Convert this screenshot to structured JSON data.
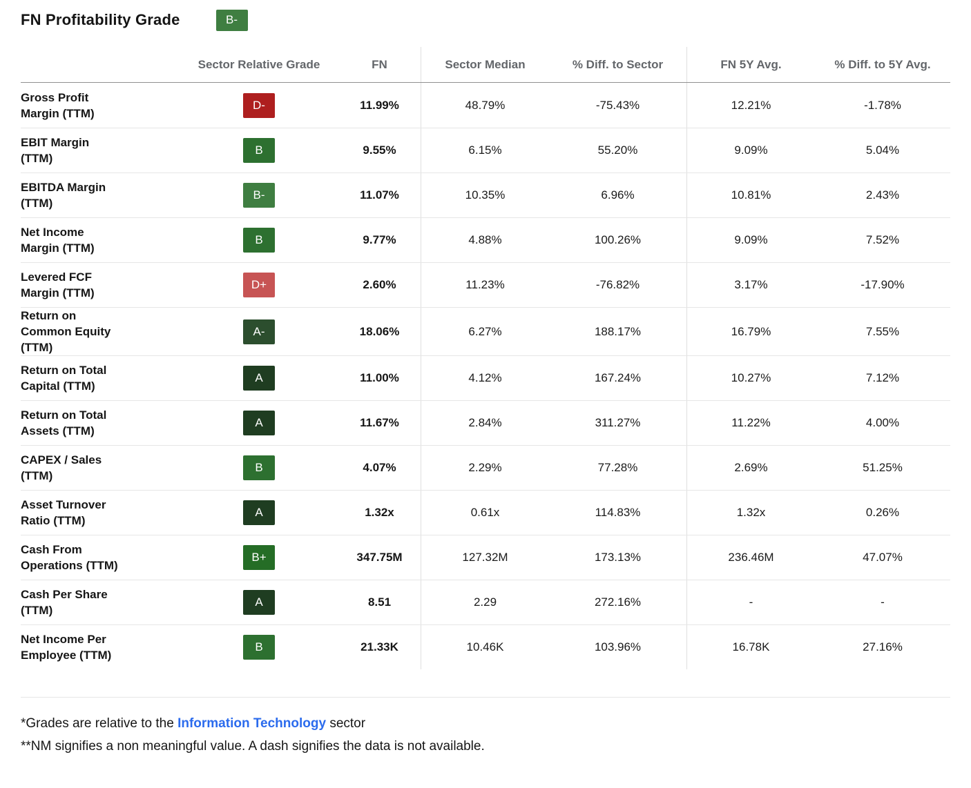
{
  "title": {
    "text": "FN Profitability Grade",
    "badge": "B-"
  },
  "grade_colors": {
    "A": "#1f3d21",
    "A-": "#2c4e2e",
    "B+": "#256d26",
    "B": "#2d7030",
    "B-": "#3f7e41",
    "D+": "#c75454",
    "D-": "#ae1f1f"
  },
  "table": {
    "headers": {
      "metric": "",
      "grade": "Sector Relative Grade",
      "fn": "FN",
      "sector_median": "Sector Median",
      "diff_sector": "% Diff. to Sector",
      "fn_5y": "FN 5Y Avg.",
      "diff_5y": "% Diff. to 5Y Avg."
    },
    "rows": [
      {
        "label": "Gross Profit\nMargin (TTM)",
        "grade": "D-",
        "fn": "11.99%",
        "sector_median": "48.79%",
        "diff_sector": "-75.43%",
        "fn_5y": "12.21%",
        "diff_5y": "-1.78%"
      },
      {
        "label": "EBIT Margin\n(TTM)",
        "grade": "B",
        "fn": "9.55%",
        "sector_median": "6.15%",
        "diff_sector": "55.20%",
        "fn_5y": "9.09%",
        "diff_5y": "5.04%"
      },
      {
        "label": "EBITDA Margin\n(TTM)",
        "grade": "B-",
        "fn": "11.07%",
        "sector_median": "10.35%",
        "diff_sector": "6.96%",
        "fn_5y": "10.81%",
        "diff_5y": "2.43%"
      },
      {
        "label": "Net Income\nMargin (TTM)",
        "grade": "B",
        "fn": "9.77%",
        "sector_median": "4.88%",
        "diff_sector": "100.26%",
        "fn_5y": "9.09%",
        "diff_5y": "7.52%"
      },
      {
        "label": "Levered FCF\nMargin (TTM)",
        "grade": "D+",
        "fn": "2.60%",
        "sector_median": "11.23%",
        "diff_sector": "-76.82%",
        "fn_5y": "3.17%",
        "diff_5y": "-17.90%"
      },
      {
        "label": "Return on\nCommon Equity\n(TTM)",
        "grade": "A-",
        "fn": "18.06%",
        "sector_median": "6.27%",
        "diff_sector": "188.17%",
        "fn_5y": "16.79%",
        "diff_5y": "7.55%"
      },
      {
        "label": "Return on Total\nCapital (TTM)",
        "grade": "A",
        "fn": "11.00%",
        "sector_median": "4.12%",
        "diff_sector": "167.24%",
        "fn_5y": "10.27%",
        "diff_5y": "7.12%"
      },
      {
        "label": "Return on Total\nAssets (TTM)",
        "grade": "A",
        "fn": "11.67%",
        "sector_median": "2.84%",
        "diff_sector": "311.27%",
        "fn_5y": "11.22%",
        "diff_5y": "4.00%"
      },
      {
        "label": "CAPEX / Sales\n(TTM)",
        "grade": "B",
        "fn": "4.07%",
        "sector_median": "2.29%",
        "diff_sector": "77.28%",
        "fn_5y": "2.69%",
        "diff_5y": "51.25%"
      },
      {
        "label": "Asset Turnover\nRatio (TTM)",
        "grade": "A",
        "fn": "1.32x",
        "sector_median": "0.61x",
        "diff_sector": "114.83%",
        "fn_5y": "1.32x",
        "diff_5y": "0.26%"
      },
      {
        "label": "Cash From\nOperations (TTM)",
        "grade": "B+",
        "fn": "347.75M",
        "sector_median": "127.32M",
        "diff_sector": "173.13%",
        "fn_5y": "236.46M",
        "diff_5y": "47.07%"
      },
      {
        "label": "Cash Per Share\n(TTM)",
        "grade": "A",
        "fn": "8.51",
        "sector_median": "2.29",
        "diff_sector": "272.16%",
        "fn_5y": "-",
        "diff_5y": "-"
      },
      {
        "label": "Net Income Per\nEmployee (TTM)",
        "grade": "B",
        "fn": "21.33K",
        "sector_median": "10.46K",
        "diff_sector": "103.96%",
        "fn_5y": "16.78K",
        "diff_5y": "27.16%"
      }
    ]
  },
  "footnotes": {
    "line1_prefix": "*Grades are relative to the ",
    "line1_link": "Information Technology",
    "line1_suffix": " sector",
    "line2": "**NM signifies a non meaningful value. A dash signifies the data is not available.",
    "link_color": "#2b6bed"
  }
}
